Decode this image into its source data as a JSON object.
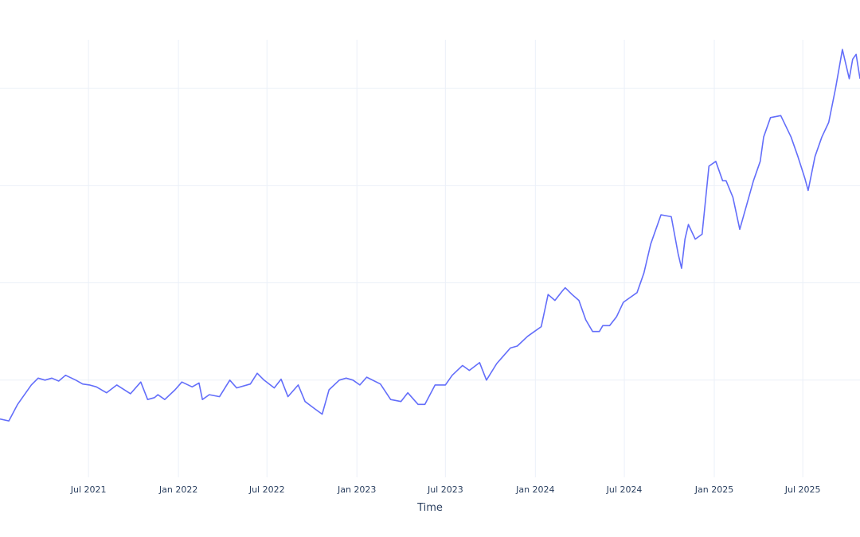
{
  "chart_data": {
    "type": "line",
    "title": "",
    "xlabel": "Time",
    "ylabel": "",
    "x_tick_labels": [
      "Jul 2021",
      "Jan 2022",
      "Jul 2022",
      "Jan 2023",
      "Jul 2023",
      "Jan 2024",
      "Jul 2024",
      "Jan 2025",
      "Jul 2025"
    ],
    "x_tick_dates": [
      "2021-07-01",
      "2022-01-01",
      "2022-07-01",
      "2023-01-01",
      "2023-07-01",
      "2024-01-01",
      "2024-07-01",
      "2025-01-01",
      "2025-07-01"
    ],
    "xlim": [
      "2021-01-01",
      "2025-10-26"
    ],
    "y_grid_values": [
      1,
      2,
      3,
      4
    ],
    "ylim": [
      0,
      4.5
    ],
    "grid": true,
    "legend": "none",
    "series": [
      {
        "color": "#636efa",
        "x": [
          "2021-01-01",
          "2021-01-19",
          "2021-02-06",
          "2021-03-06",
          "2021-03-20",
          "2021-04-03",
          "2021-04-17",
          "2021-05-01",
          "2021-05-15",
          "2021-06-05",
          "2021-06-19",
          "2021-07-03",
          "2021-07-17",
          "2021-08-07",
          "2021-08-28",
          "2021-09-25",
          "2021-10-16",
          "2021-10-30",
          "2021-11-13",
          "2021-11-20",
          "2021-12-04",
          "2021-12-25",
          "2022-01-08",
          "2022-01-29",
          "2022-02-12",
          "2022-02-19",
          "2022-03-05",
          "2022-03-26",
          "2022-04-16",
          "2022-04-30",
          "2022-05-28",
          "2022-06-11",
          "2022-06-25",
          "2022-07-16",
          "2022-07-30",
          "2022-08-13",
          "2022-09-03",
          "2022-09-17",
          "2022-10-08",
          "2022-10-22",
          "2022-11-05",
          "2022-11-26",
          "2022-12-10",
          "2022-12-24",
          "2023-01-07",
          "2023-01-21",
          "2023-02-18",
          "2023-03-11",
          "2023-04-01",
          "2023-04-15",
          "2023-05-06",
          "2023-05-20",
          "2023-06-10",
          "2023-07-01",
          "2023-07-15",
          "2023-08-05",
          "2023-08-19",
          "2023-09-09",
          "2023-09-23",
          "2023-10-14",
          "2023-10-28",
          "2023-11-11",
          "2023-11-25",
          "2023-12-16",
          "2023-12-30",
          "2024-01-13",
          "2024-01-27",
          "2024-02-10",
          "2024-02-24",
          "2024-03-02",
          "2024-03-16",
          "2024-03-30",
          "2024-04-13",
          "2024-04-27",
          "2024-05-11",
          "2024-05-18",
          "2024-06-01",
          "2024-06-15",
          "2024-06-29",
          "2024-07-13",
          "2024-07-27",
          "2024-08-10",
          "2024-08-24",
          "2024-09-14",
          "2024-10-05",
          "2024-10-19",
          "2024-10-26",
          "2024-11-02",
          "2024-11-09",
          "2024-11-23",
          "2024-12-07",
          "2024-12-21",
          "2025-01-04",
          "2025-01-18",
          "2025-01-25",
          "2025-02-08",
          "2025-02-22",
          "2025-03-08",
          "2025-03-22",
          "2025-04-05",
          "2025-04-12",
          "2025-04-26",
          "2025-05-17",
          "2025-06-07",
          "2025-06-21",
          "2025-07-05",
          "2025-07-12",
          "2025-07-26",
          "2025-08-09",
          "2025-08-23",
          "2025-09-06",
          "2025-09-20",
          "2025-10-04",
          "2025-10-11",
          "2025-10-18",
          "2025-10-26"
        ],
        "y": [
          0.6,
          0.58,
          0.75,
          0.95,
          1.02,
          1.0,
          1.02,
          0.99,
          1.05,
          1.0,
          0.96,
          0.95,
          0.93,
          0.87,
          0.95,
          0.86,
          0.98,
          0.8,
          0.82,
          0.85,
          0.8,
          0.9,
          0.98,
          0.93,
          0.97,
          0.8,
          0.85,
          0.83,
          1.0,
          0.92,
          0.96,
          1.07,
          1.0,
          0.92,
          1.01,
          0.83,
          0.95,
          0.78,
          0.7,
          0.65,
          0.9,
          1.0,
          1.02,
          1.0,
          0.95,
          1.03,
          0.96,
          0.8,
          0.78,
          0.87,
          0.75,
          0.75,
          0.95,
          0.95,
          1.05,
          1.15,
          1.1,
          1.18,
          1.0,
          1.17,
          1.25,
          1.33,
          1.35,
          1.45,
          1.5,
          1.55,
          1.88,
          1.82,
          1.91,
          1.95,
          1.88,
          1.82,
          1.62,
          1.5,
          1.5,
          1.56,
          1.56,
          1.65,
          1.8,
          1.85,
          1.9,
          2.1,
          2.4,
          2.7,
          2.68,
          2.3,
          2.15,
          2.45,
          2.6,
          2.45,
          2.5,
          3.2,
          3.25,
          3.05,
          3.05,
          2.88,
          2.55,
          2.8,
          3.05,
          3.25,
          3.5,
          3.7,
          3.72,
          3.5,
          3.3,
          3.08,
          2.95,
          3.3,
          3.5,
          3.65,
          4.0,
          4.4,
          4.1,
          4.3,
          4.35,
          4.1
        ]
      }
    ]
  }
}
